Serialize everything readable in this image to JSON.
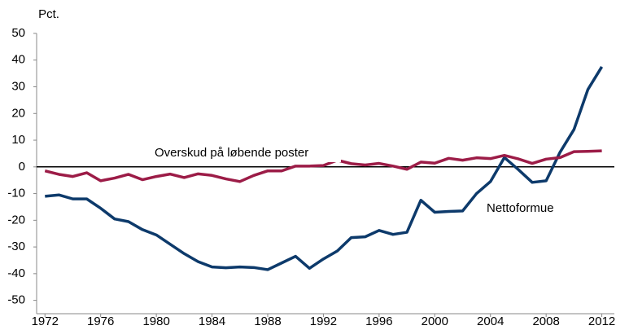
{
  "chart_data": {
    "type": "line",
    "y_label": "Pct.",
    "x": [
      1972,
      1973,
      1974,
      1975,
      1976,
      1977,
      1978,
      1979,
      1980,
      1981,
      1982,
      1983,
      1984,
      1985,
      1986,
      1987,
      1988,
      1989,
      1990,
      1991,
      1992,
      1993,
      1994,
      1995,
      1996,
      1997,
      1998,
      1999,
      2000,
      2001,
      2002,
      2003,
      2004,
      2005,
      2006,
      2007,
      2008,
      2009,
      2010,
      2011,
      2012
    ],
    "series": [
      {
        "name": "Nettoformue",
        "color": "#0d3a6b",
        "values": [
          -11,
          -10.5,
          -12,
          -12,
          -15.5,
          -19.5,
          -20.5,
          -23.5,
          -25.5,
          -29,
          -32.5,
          -35.5,
          -37.5,
          -37.8,
          -37.5,
          -37.7,
          -38.5,
          -36,
          -33.5,
          -38,
          -34.5,
          -31.5,
          -26.5,
          -26.2,
          -23.8,
          -25.3,
          -24.5,
          -12.5,
          -17,
          -16.7,
          -16.5,
          -10,
          -5.5,
          3.5,
          -1,
          -5.8,
          -5.2,
          5.5,
          14,
          29,
          37.5
        ]
      },
      {
        "name": "Overskud på løbende poster",
        "color": "#9c1c47",
        "values": [
          -1.5,
          -2.8,
          -3.6,
          -2.2,
          -5.2,
          -4.2,
          -2.8,
          -4.8,
          -3.6,
          -2.7,
          -4,
          -2.6,
          -3.2,
          -4.5,
          -5.5,
          -3.2,
          -1.5,
          -1.5,
          0.3,
          0.3,
          0.5,
          2.5,
          1.2,
          0.7,
          1.3,
          0.3,
          -0.9,
          1.8,
          1.4,
          3.2,
          2.5,
          3.4,
          3.1,
          4.3,
          3,
          1.3,
          2.9,
          3.5,
          5.7,
          5.8,
          6
        ]
      }
    ],
    "xlim": [
      1971.4,
      2012.9
    ],
    "xticks": [
      1972,
      1976,
      1980,
      1984,
      1988,
      1992,
      1996,
      2000,
      2004,
      2008,
      2012
    ],
    "ylim": [
      -55,
      50
    ],
    "yticks": [
      -50,
      -40,
      -30,
      -20,
      -10,
      0,
      10,
      20,
      30,
      40,
      50
    ],
    "zero_line": true
  }
}
